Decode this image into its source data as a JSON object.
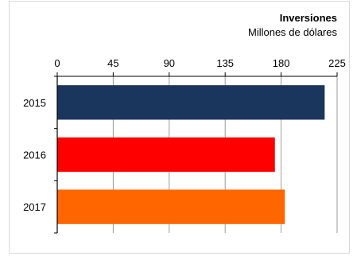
{
  "chart_data": {
    "type": "bar",
    "orientation": "horizontal",
    "title": "Inversiones",
    "subtitle": "Millones de dólares",
    "categories": [
      "2015",
      "2016",
      "2017"
    ],
    "values": [
      215,
      175,
      183
    ],
    "colors": [
      "#1b365d",
      "#ff0000",
      "#ff6600"
    ],
    "xlim": [
      0,
      225
    ],
    "xticks": [
      0,
      45,
      90,
      135,
      180,
      225
    ],
    "x_axis_position": "top",
    "grid": true,
    "legend": "none"
  }
}
